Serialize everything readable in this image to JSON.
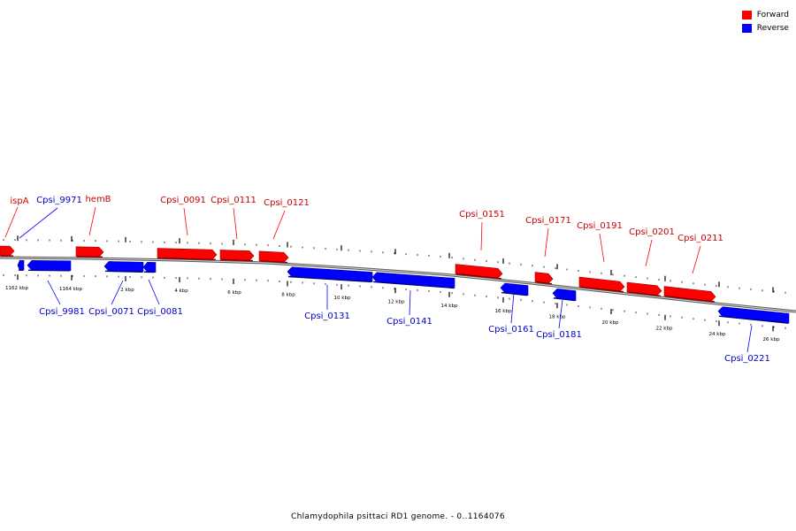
{
  "legend": {
    "forward": {
      "label": "Forward",
      "color": "#ff0000"
    },
    "reverse": {
      "label": "Reverse",
      "color": "#0000ff"
    }
  },
  "caption": "Chlamydophila psittaci RD1 genome. - 0..1164076",
  "ticks": [
    "1162 kbp",
    "1164 kbp",
    "2 kbp",
    "4 kbp",
    "6 kbp",
    "8 kbp",
    "10 kbp",
    "12 kbp",
    "14 kbp",
    "16 kbp",
    "18 kbp",
    "20 kbp",
    "22 kbp",
    "24 kbp",
    "26 kbp"
  ],
  "genes": [
    {
      "label": "ispA",
      "strand": "forward"
    },
    {
      "label": "Cpsi_9971",
      "strand": "reverse"
    },
    {
      "label": "hemB",
      "strand": "forward"
    },
    {
      "label": "Cpsi_0091",
      "strand": "forward"
    },
    {
      "label": "Cpsi_0111",
      "strand": "forward"
    },
    {
      "label": "Cpsi_0121",
      "strand": "forward"
    },
    {
      "label": "Cpsi_0151",
      "strand": "forward"
    },
    {
      "label": "Cpsi_0171",
      "strand": "forward"
    },
    {
      "label": "Cpsi_0191",
      "strand": "forward"
    },
    {
      "label": "Cpsi_0201",
      "strand": "forward"
    },
    {
      "label": "Cpsi_0211",
      "strand": "forward"
    },
    {
      "label": "Cpsi_9981",
      "strand": "reverse"
    },
    {
      "label": "Cpsi_0071",
      "strand": "reverse"
    },
    {
      "label": "Cpsi_0081",
      "strand": "reverse"
    },
    {
      "label": "Cpsi_0131",
      "strand": "reverse"
    },
    {
      "label": "Cpsi_0141",
      "strand": "reverse"
    },
    {
      "label": "Cpsi_0161",
      "strand": "reverse"
    },
    {
      "label": "Cpsi_0181",
      "strand": "reverse"
    },
    {
      "label": "Cpsi_0221",
      "strand": "reverse"
    }
  ]
}
